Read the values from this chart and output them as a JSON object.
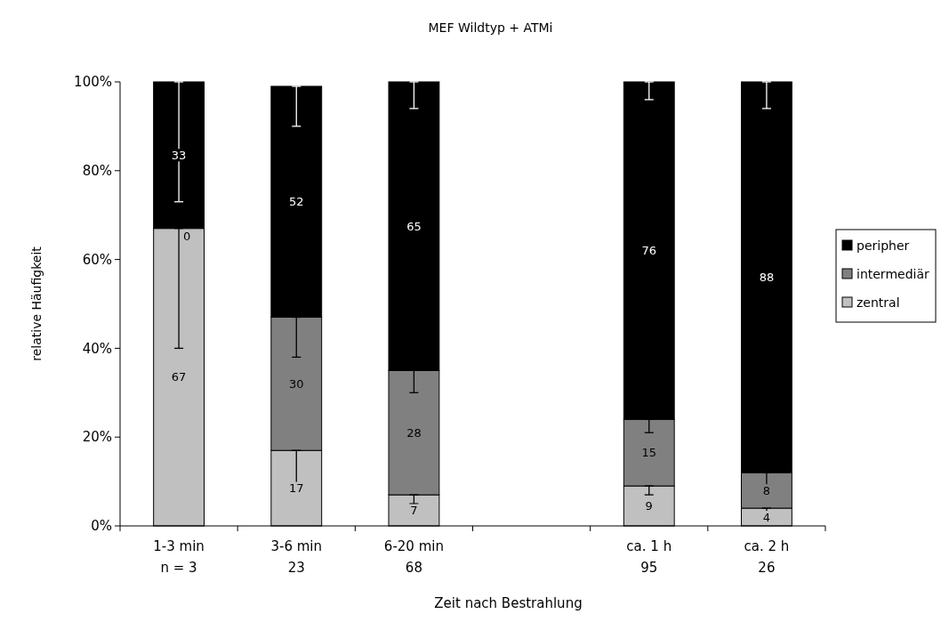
{
  "chart_data": {
    "type": "bar",
    "stacked": true,
    "title": "MEF Wildtyp + ATMi",
    "xlabel": "Zeit nach Bestrahlung",
    "ylabel": "relative Häufigkeit",
    "categories": [
      "1-3 min\nn = 3",
      "3-6 min\n23",
      "6-20 min\n68",
      null,
      "ca. 1 h\n95",
      "ca. 2 h\n26"
    ],
    "series": [
      {
        "name": "zentral",
        "color": "#c0c0c0",
        "values": [
          67,
          17,
          7,
          null,
          9,
          4
        ],
        "errors": [
          [
            40,
            67
          ],
          [
            8,
            17
          ],
          [
            5,
            7
          ],
          null,
          [
            7,
            9
          ],
          [
            2,
            4
          ]
        ],
        "value_labels": [
          "67",
          "17",
          "7",
          null,
          "9",
          "4"
        ]
      },
      {
        "name": "intermediär",
        "color": "#808080",
        "values": [
          0,
          30,
          28,
          null,
          15,
          8
        ],
        "errors": [
          null,
          [
            38,
            47
          ],
          [
            30,
            35
          ],
          null,
          [
            21,
            24
          ],
          [
            7,
            12
          ]
        ],
        "value_labels": [
          null,
          "30",
          "28",
          null,
          "15",
          "8"
        ]
      },
      {
        "name": "peripher",
        "color": "#000000",
        "values": [
          33,
          52,
          65,
          null,
          76,
          88
        ],
        "errors": [
          [
            73,
            100
          ],
          [
            90,
            99
          ],
          [
            94,
            100
          ],
          null,
          [
            96,
            100
          ],
          [
            94,
            100
          ]
        ],
        "value_labels": [
          "33",
          "52",
          "65",
          null,
          "76",
          "88"
        ]
      }
    ],
    "ylim": [
      0,
      100
    ],
    "yticks": [
      {
        "value": 0,
        "label": "0%"
      },
      {
        "value": 20,
        "label": "20%"
      },
      {
        "value": 40,
        "label": "40%"
      },
      {
        "value": 60,
        "label": "60%"
      },
      {
        "value": 80,
        "label": "80%"
      },
      {
        "value": 100,
        "label": "100%"
      }
    ],
    "annotations": [
      {
        "text": "0",
        "x": "1-3 min\nn = 3",
        "y": 67
      }
    ],
    "legend": "right"
  }
}
